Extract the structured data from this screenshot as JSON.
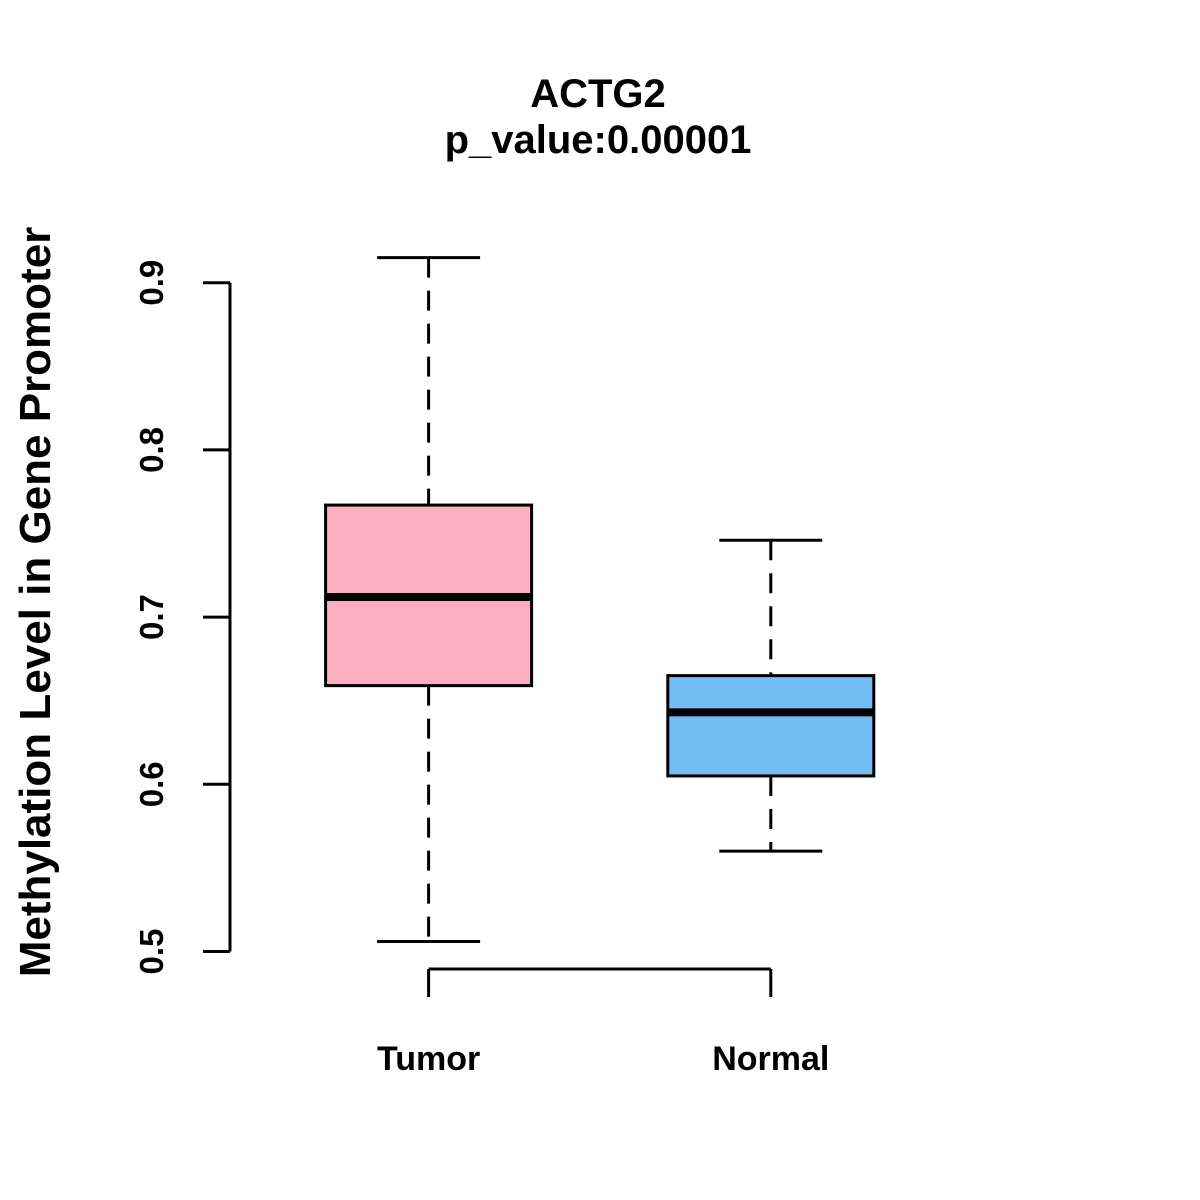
{
  "chart_data": {
    "type": "boxplot",
    "title": "ACTG2",
    "subtitle": "p_value:0.00001",
    "p_value": 1e-05,
    "ylabel": "Methylation Level in Gene Promoter",
    "xlabel": "",
    "categories": [
      "Tumor",
      "Normal"
    ],
    "y_ticks": [
      0.5,
      0.6,
      0.7,
      0.8,
      0.9
    ],
    "y_tick_labels": [
      "0.5",
      "0.6",
      "0.7",
      "0.8",
      "0.9"
    ],
    "ylim": [
      0.48,
      0.93
    ],
    "grid": false,
    "legend": "none",
    "series": [
      {
        "name": "Tumor",
        "lower_whisker": 0.506,
        "q1": 0.659,
        "median": 0.712,
        "q3": 0.767,
        "upper_whisker": 0.915,
        "fill_color": "#FBAEC2",
        "edge_color": "#000000"
      },
      {
        "name": "Normal",
        "lower_whisker": 0.56,
        "q1": 0.605,
        "median": 0.643,
        "q3": 0.665,
        "upper_whisker": 0.746,
        "fill_color": "#73BEF7",
        "edge_color": "#000000"
      }
    ],
    "colors": {
      "tumor_fill": "#FBAEC2",
      "normal_fill": "#73BEF7",
      "line_color": "#000000",
      "background": "#FFFFFF"
    }
  }
}
